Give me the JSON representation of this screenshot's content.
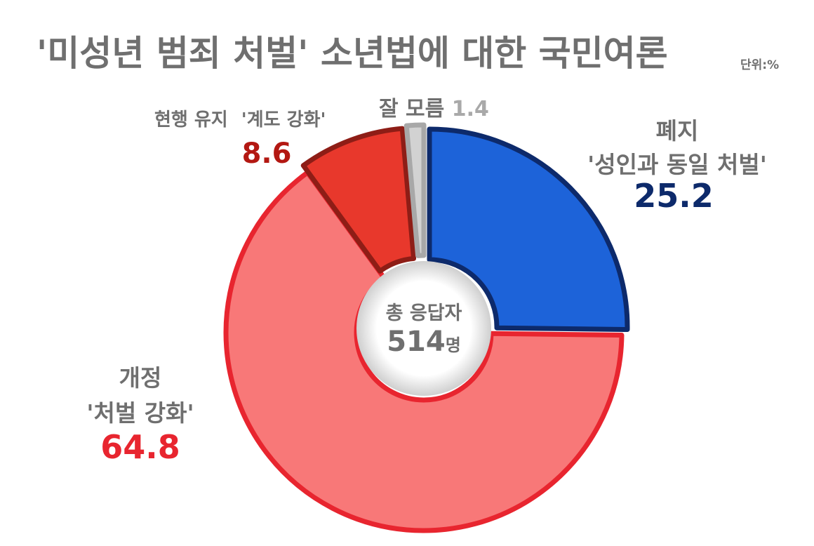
{
  "title": "'미성년 범죄 처벌' 소년법에 대한 국민여론",
  "unit_label": "단위:%",
  "center": {
    "line1": "총 응답자",
    "count": "514",
    "count_unit": "명"
  },
  "chart_data": {
    "type": "pie",
    "donut": true,
    "unit": "%",
    "slices": [
      {
        "key": "abolish",
        "label": "폐지",
        "sublabel": "'성인과 동일 처벌'",
        "value": 25.2,
        "value_text": "25.2",
        "color": "#1d63d9",
        "border": "#0d2a6b",
        "label_color": "#0d2a6b"
      },
      {
        "key": "revise",
        "label": "개정",
        "sublabel": "'처벌 강화'",
        "value": 64.8,
        "value_text": "64.8",
        "color": "#f87878",
        "border": "#e8252f",
        "label_color": "#e8252f"
      },
      {
        "key": "keep",
        "label": "현행 유지",
        "sublabel": "'계도 강화'",
        "value": 8.6,
        "value_text": "8.6",
        "color": "#e8382c",
        "border": "#8e1d16",
        "label_color": "#b31812"
      },
      {
        "key": "unknown",
        "label": "잘 모름",
        "sublabel": "",
        "value": 1.4,
        "value_text": "1.4",
        "color": "#d2d2d2",
        "border": "#a8a8a8",
        "label_color": "#a9a9a9"
      }
    ]
  }
}
